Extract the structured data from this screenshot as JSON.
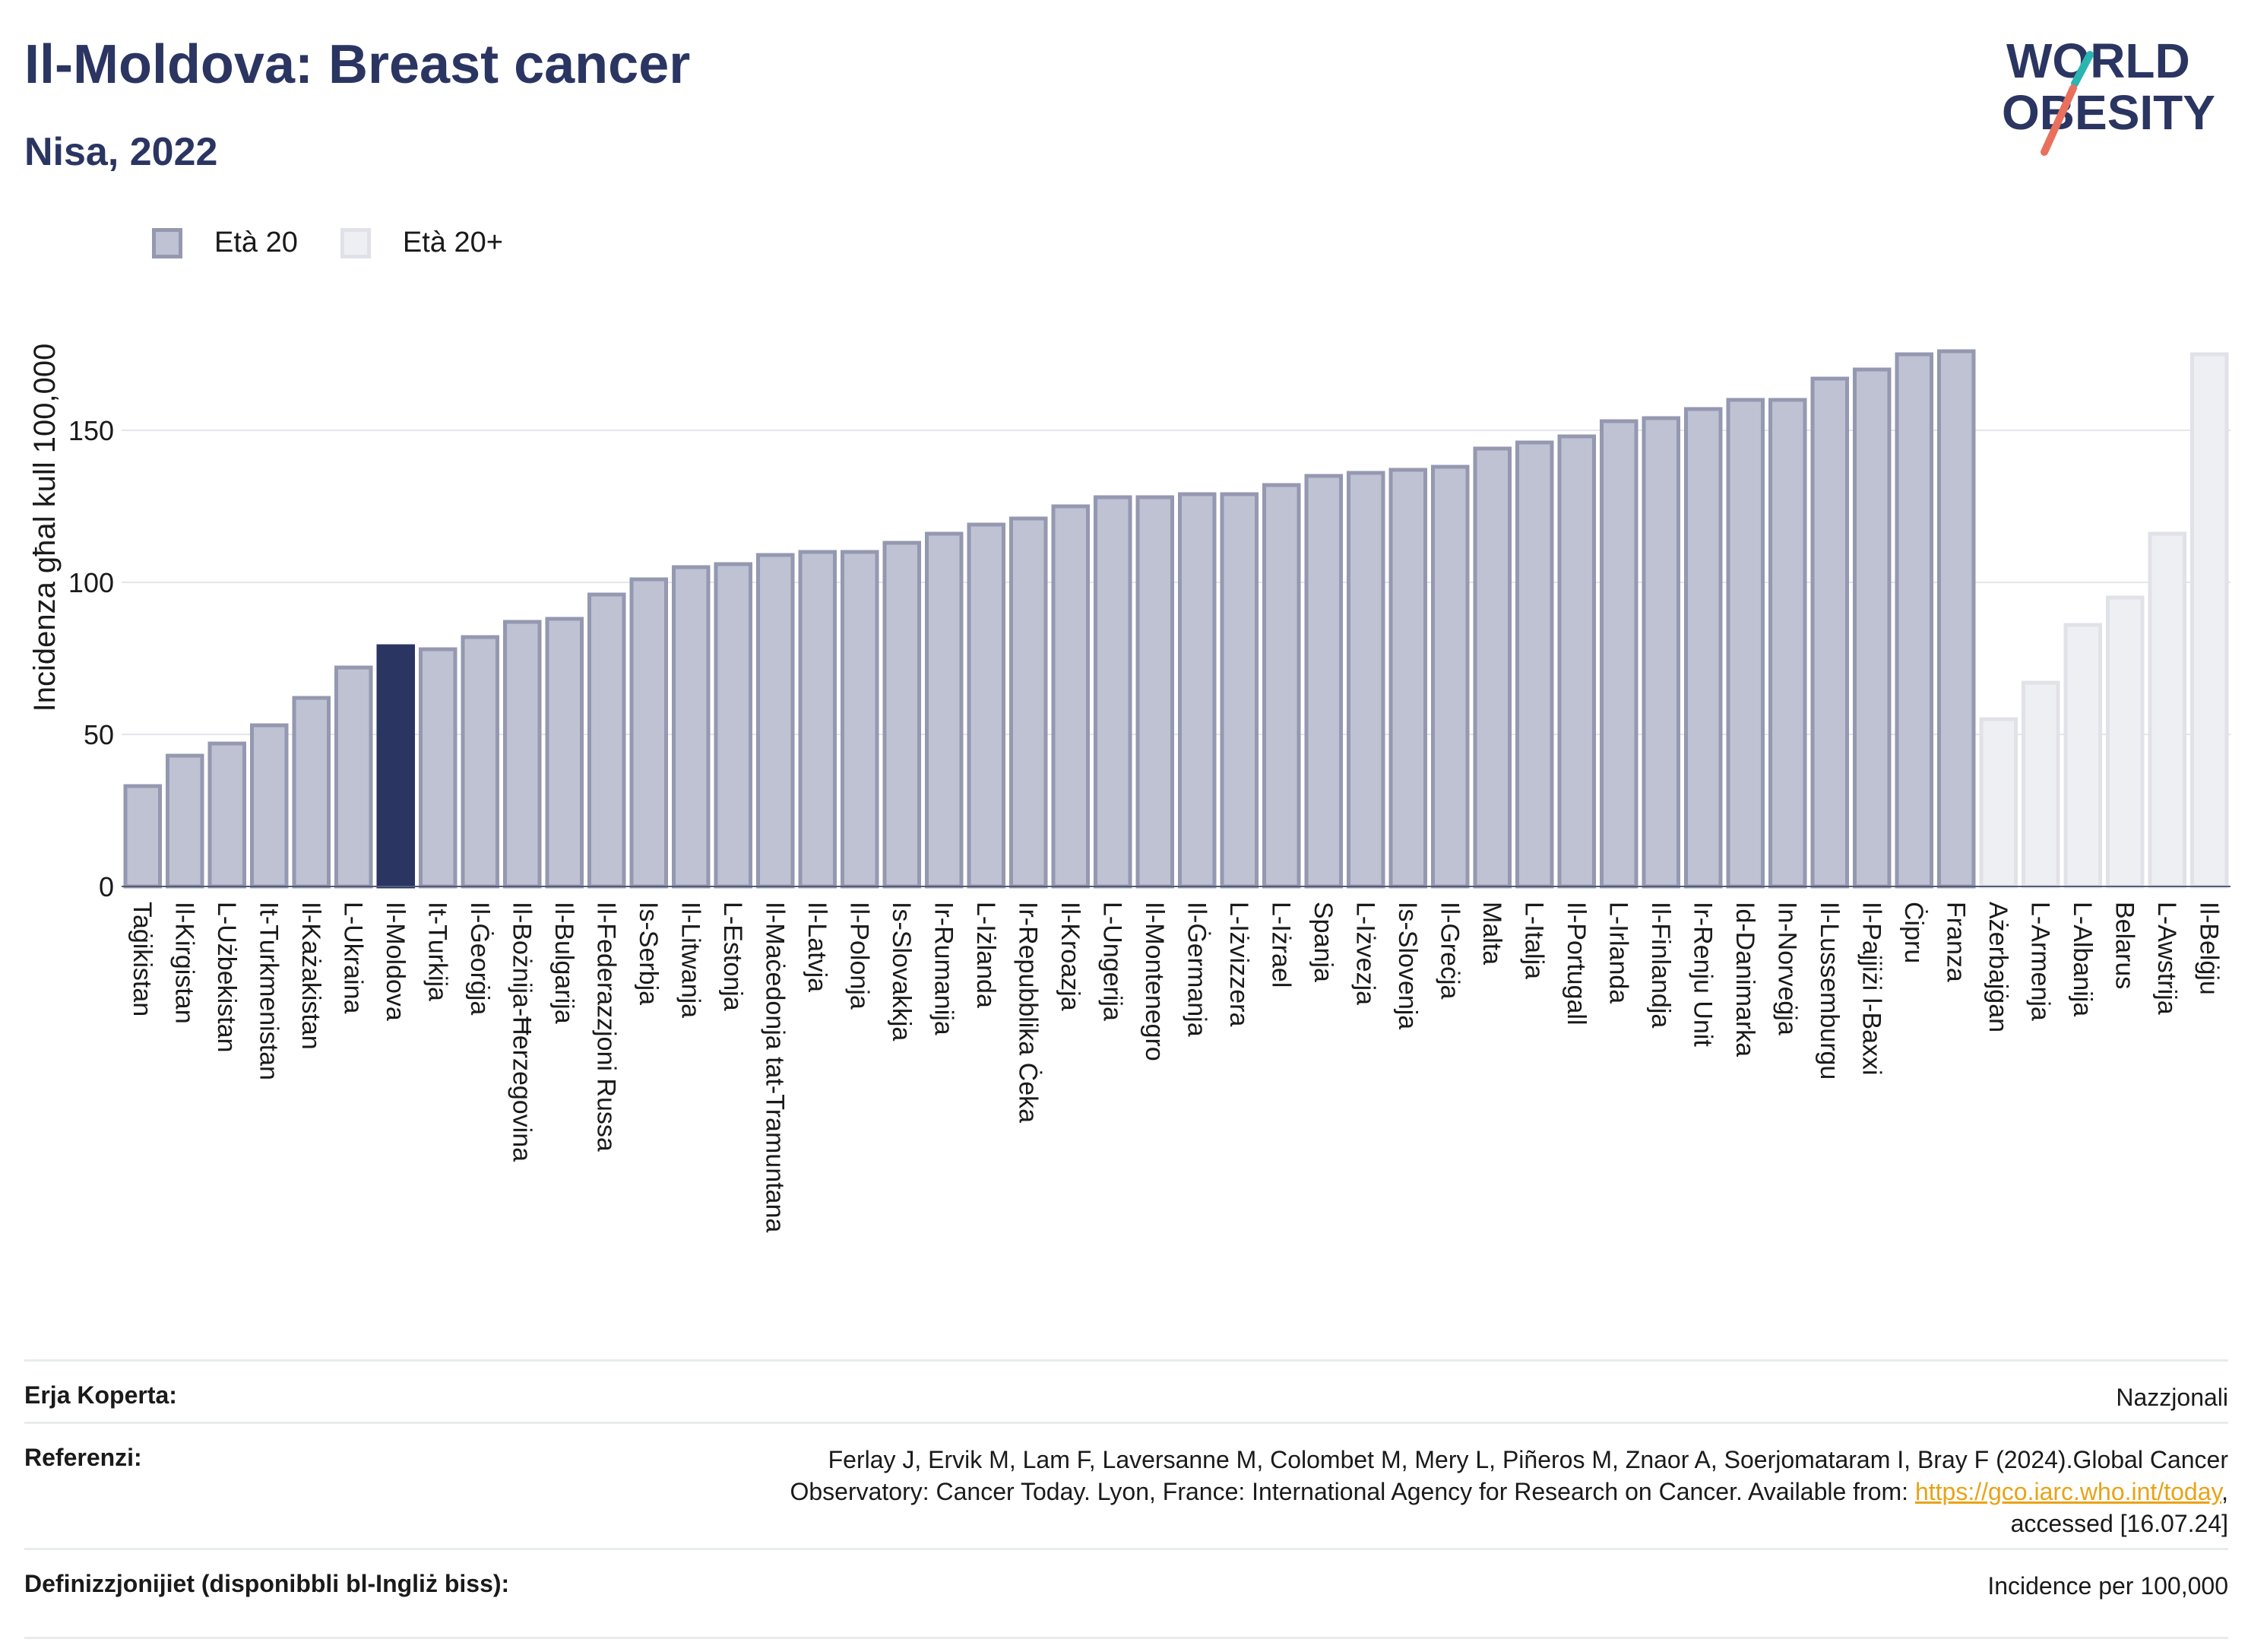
{
  "title": "Il-Moldova: Breast cancer",
  "subtitle": "Nisa, 2022",
  "logo": {
    "line1": "WORLD",
    "line2": "OBESITY"
  },
  "legend": [
    {
      "label": "Età 20",
      "color": "#bfc2d2"
    },
    {
      "label": "Età 20+",
      "color": "#eeeff3"
    }
  ],
  "chart_data": {
    "type": "bar",
    "ylabel": "Incidenza għal kull 100,000",
    "ylim": [
      0,
      200
    ],
    "yticks": [
      0,
      50,
      100,
      150
    ],
    "grid": true,
    "highlight_color": "#2b3562",
    "series_colors": {
      "age20": "#bfc2d2",
      "age20plus": "#eeeff3"
    },
    "categories": [
      "Taġikistan",
      "Il-Kirgistan",
      "L-Użbekistan",
      "It-Turkmenistan",
      "Il-Każakistan",
      "L-Ukraina",
      "Il-Moldova",
      "It-Turkija",
      "Il-Ġeorġja",
      "Il-Bożnija-Ħerzegovina",
      "Il-Bulgarija",
      "Il-Federazzjoni Russa",
      "Is-Serbja",
      "Il-Litwanja",
      "L-Estonja",
      "Il-Maċedonja tat-Tramuntana",
      "Il-Latvja",
      "Il-Polonja",
      "Is-Slovakkja",
      "Ir-Rumanija",
      "L-Iżlanda",
      "Ir-Repubblika Ċeka",
      "Il-Kroazja",
      "L-Ungerija",
      "Il-Montenegro",
      "Il-Ġermanja",
      "L-Iżvizzera",
      "L-Iżrael",
      "Spanja",
      "L-Iżvezja",
      "Is-Slovenja",
      "Il-Greċja",
      "Malta",
      "L-Italja",
      "Il-Portugall",
      "L-Irlanda",
      "Il-Finlandja",
      "Ir-Renju Unit",
      "Id-Danimarka",
      "In-Norveġja",
      "Il-Lussemburgu",
      "Il-Pajjiżi l-Baxxi",
      "Ċipru",
      "Franza",
      "Ażerbajġan",
      "L-Armenja",
      "L-Albanija",
      "Belarus",
      "L-Awstrija",
      "Il-Belġju"
    ],
    "values": [
      33,
      43,
      47,
      53,
      62,
      72,
      79,
      78,
      82,
      87,
      88,
      96,
      101,
      105,
      106,
      109,
      110,
      110,
      113,
      116,
      119,
      121,
      125,
      128,
      128,
      129,
      129,
      132,
      135,
      136,
      137,
      138,
      144,
      146,
      148,
      153,
      154,
      157,
      160,
      160,
      167,
      170,
      175,
      176,
      55,
      67,
      86,
      95,
      116,
      175
    ],
    "series_group": [
      "age20",
      "age20",
      "age20",
      "age20",
      "age20",
      "age20",
      "age20",
      "age20",
      "age20",
      "age20",
      "age20",
      "age20",
      "age20",
      "age20",
      "age20",
      "age20",
      "age20",
      "age20",
      "age20",
      "age20",
      "age20",
      "age20",
      "age20",
      "age20",
      "age20",
      "age20",
      "age20",
      "age20",
      "age20",
      "age20",
      "age20",
      "age20",
      "age20",
      "age20",
      "age20",
      "age20",
      "age20",
      "age20",
      "age20",
      "age20",
      "age20",
      "age20",
      "age20",
      "age20",
      "age20plus",
      "age20plus",
      "age20plus",
      "age20plus",
      "age20plus",
      "age20plus"
    ],
    "highlight": "Il-Moldova"
  },
  "footer": {
    "coverage_label": "Erja Koperta:",
    "coverage_value": "Nazzjonali",
    "refs_label": "Referenzi:",
    "refs_line1": "Ferlay J, Ervik M, Lam F, Laversanne M, Colombet M, Mery L, Piñeros M, Znaor A, Soerjomataram I, Bray F (2024).Global Cancer",
    "refs_line2_pre": "Observatory: Cancer Today. Lyon, France: International Agency for Research on Cancer. Available from: ",
    "refs_link": "https://gco.iarc.who.int/today",
    "refs_line2_post": ",",
    "refs_line3": "accessed [16.07.24]",
    "defs_label": "Definizzjonijiet (disponibbli bl-Ingliż biss):",
    "defs_value": "Incidence per 100,000"
  }
}
